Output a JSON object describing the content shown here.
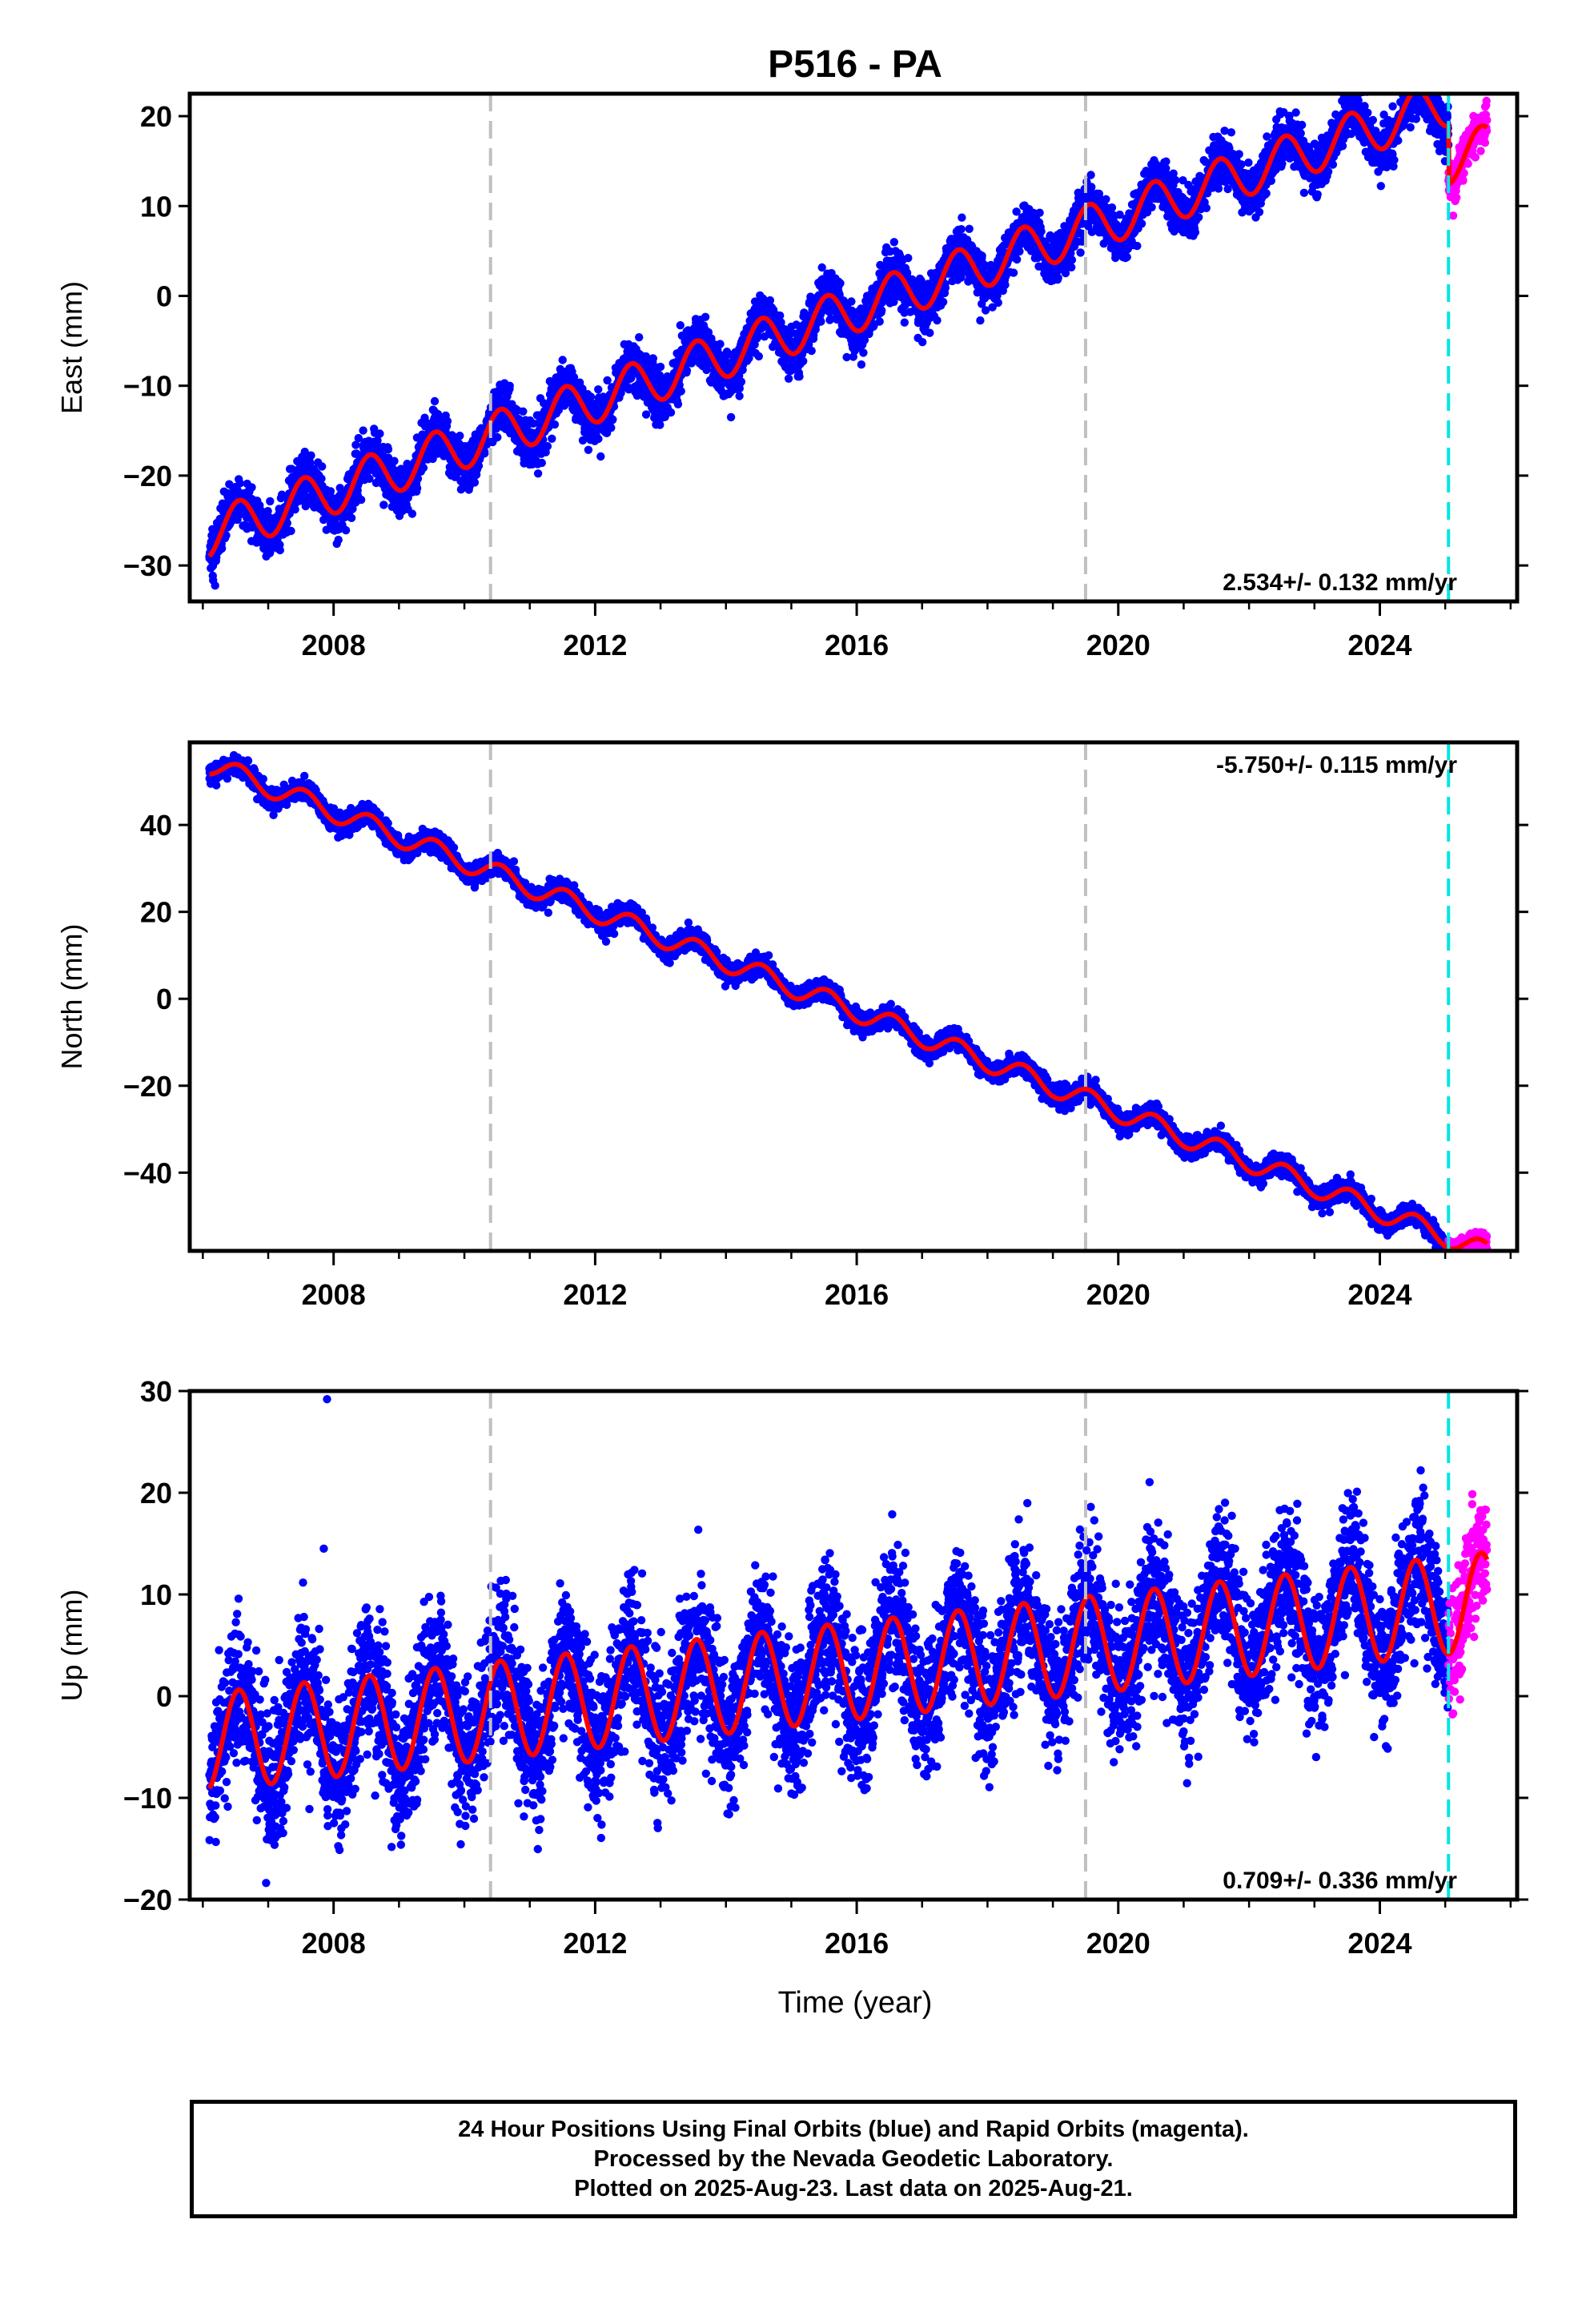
{
  "title": "P516 - PA",
  "xlabel": "Time (year)",
  "colors": {
    "final_orbits": "#0000ff",
    "rapid_orbits": "#ff00ff",
    "model": "#ff0000",
    "equipment_change": "#c0c0c0",
    "earthquake": "#00e5e5"
  },
  "chart_data": [
    {
      "type": "scatter",
      "name": "east",
      "ylabel": "East (mm)",
      "xlim": [
        2005.8,
        2026.1
      ],
      "ylim": [
        -34,
        22.5
      ],
      "yticks": [
        -30,
        -20,
        -10,
        0,
        10,
        20
      ],
      "ytick_labels": [
        "−30",
        "−20",
        "−10",
        "0",
        "10",
        "20"
      ],
      "xticks": [
        2008,
        2012,
        2016,
        2020,
        2024
      ],
      "xtick_labels": [
        "2008",
        "2012",
        "2016",
        "2020",
        "2024"
      ],
      "rate_label": "2.534+/- 0.132 mm/yr",
      "rate_label_position": "bottom-right",
      "grey_vlines": [
        2010.4,
        2019.5
      ],
      "cyan_vlines": [
        2025.05
      ],
      "series_params": {
        "start": 2006.1,
        "end_final": 2025.05,
        "end_rapid": 2025.64,
        "y0": -26.5,
        "rate": 2.534,
        "amp": 2.6,
        "noise": 1.3
      },
      "offsets": [
        {
          "x": 2025.05,
          "dy": -6.5
        }
      ]
    },
    {
      "type": "scatter",
      "name": "north",
      "ylabel": "North (mm)",
      "xlim": [
        2005.8,
        2026.1
      ],
      "ylim": [
        -58,
        59
      ],
      "yticks": [
        -40,
        -20,
        0,
        20,
        40
      ],
      "ytick_labels": [
        "−40",
        "−20",
        "0",
        "20",
        "40"
      ],
      "xticks": [
        2008,
        2012,
        2016,
        2020,
        2024
      ],
      "xtick_labels": [
        "2008",
        "2012",
        "2016",
        "2020",
        "2024"
      ],
      "rate_label": "-5.750+/- 0.115 mm/yr",
      "rate_label_position": "top-right",
      "grey_vlines": [
        2010.4,
        2019.5
      ],
      "cyan_vlines": [
        2025.05
      ],
      "series_params": {
        "start": 2006.1,
        "end_final": 2025.05,
        "end_rapid": 2025.64,
        "y0": 54,
        "rate": -5.75,
        "amp": 2.4,
        "noise": 1.1
      },
      "offsets": []
    },
    {
      "type": "scatter",
      "name": "up",
      "ylabel": "Up (mm)",
      "xlim": [
        2005.8,
        2026.1
      ],
      "ylim": [
        -20,
        30
      ],
      "yticks": [
        -20,
        -10,
        0,
        10,
        20,
        30
      ],
      "ytick_labels": [
        "−20",
        "−10",
        "0",
        "10",
        "20",
        "30"
      ],
      "xticks": [
        2008,
        2012,
        2016,
        2020,
        2024
      ],
      "xtick_labels": [
        "2008",
        "2012",
        "2016",
        "2020",
        "2024"
      ],
      "rate_label": "0.709+/- 0.336 mm/yr",
      "rate_label_position": "bottom-right",
      "grey_vlines": [
        2010.4,
        2019.5
      ],
      "cyan_vlines": [
        2025.05
      ],
      "series_params": {
        "start": 2006.1,
        "end_final": 2025.05,
        "end_rapid": 2025.64,
        "y0": -4.5,
        "rate": 0.709,
        "amp": 4.8,
        "noise": 3.4
      },
      "offsets": [],
      "outliers": [
        {
          "x": 2007.9,
          "y": 29.2
        },
        {
          "x": 2007.85,
          "y": 14.5
        }
      ]
    }
  ],
  "footer": {
    "line1": "24 Hour Positions Using Final Orbits (blue) and Rapid Orbits (magenta).",
    "line2": "Processed by the Nevada Geodetic Laboratory.",
    "line3": "Plotted on 2025-Aug-23. Last data on 2025-Aug-21."
  }
}
